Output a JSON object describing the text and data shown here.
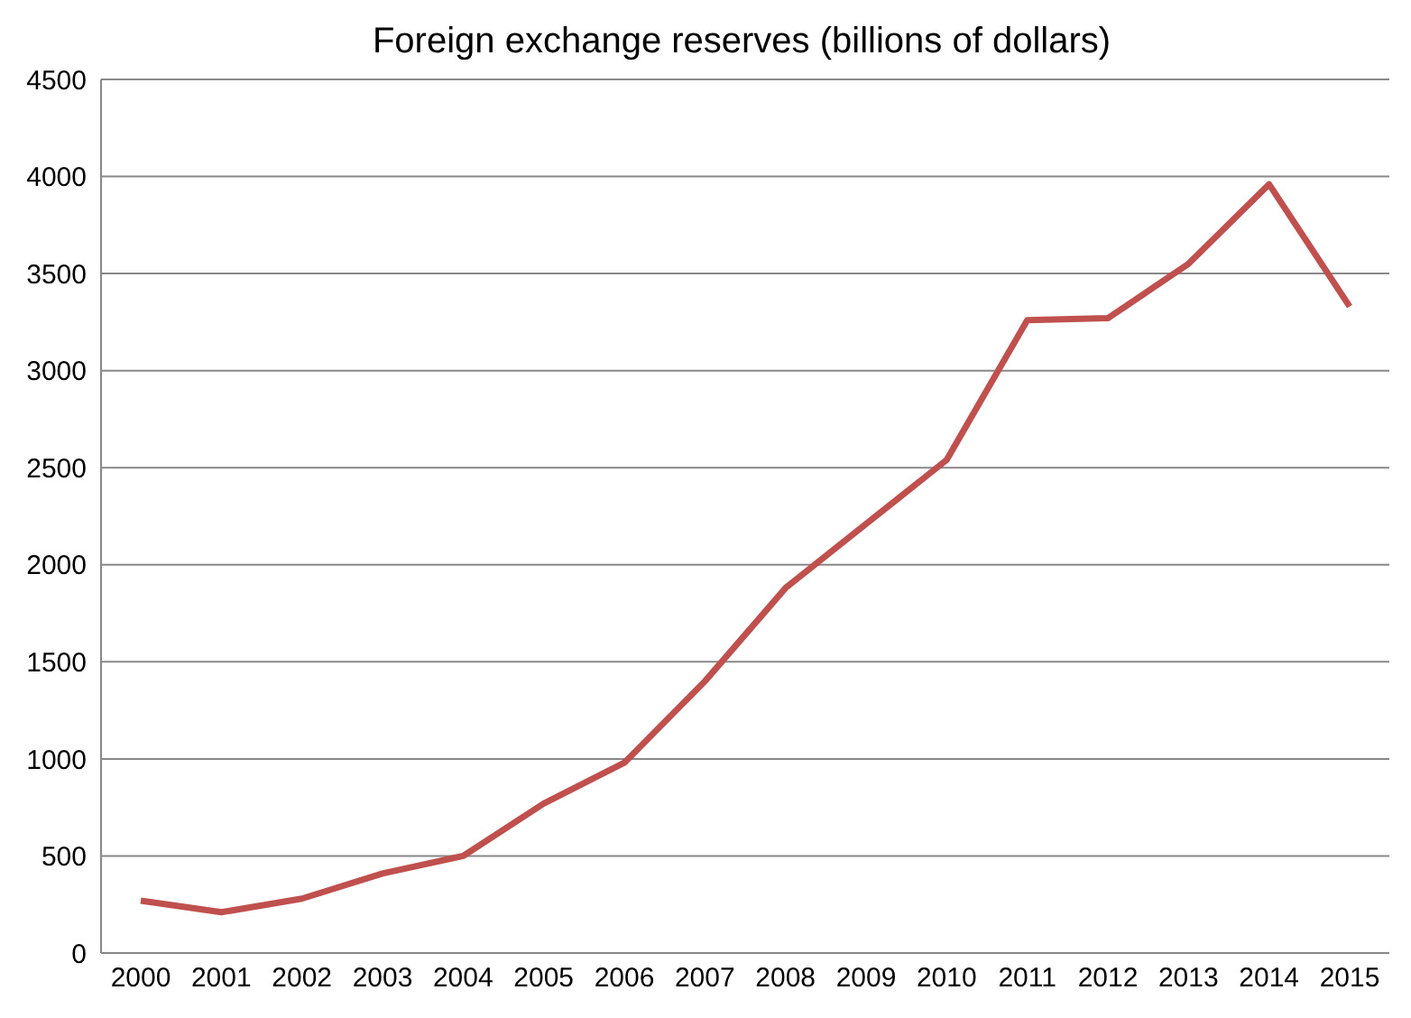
{
  "chart_data": {
    "type": "line",
    "title": "Foreign exchange reserves (billions of dollars)",
    "categories": [
      "2000",
      "2001",
      "2002",
      "2003",
      "2004",
      "2005",
      "2006",
      "2007",
      "2008",
      "2009",
      "2010",
      "2011",
      "2012",
      "2013",
      "2014",
      "2015"
    ],
    "series": [
      {
        "color": "#c0504d",
        "values": [
          270,
          210,
          280,
          410,
          500,
          770,
          980,
          1400,
          1880,
          2210,
          2540,
          3260,
          3270,
          3550,
          3960,
          3330
        ]
      }
    ],
    "ylim": [
      0,
      4500
    ],
    "yticks": [
      0,
      500,
      1000,
      1500,
      2000,
      2500,
      3000,
      3500,
      4000,
      4500
    ],
    "grid": "y",
    "legend": false,
    "marker": "none",
    "line_style": "solid"
  }
}
